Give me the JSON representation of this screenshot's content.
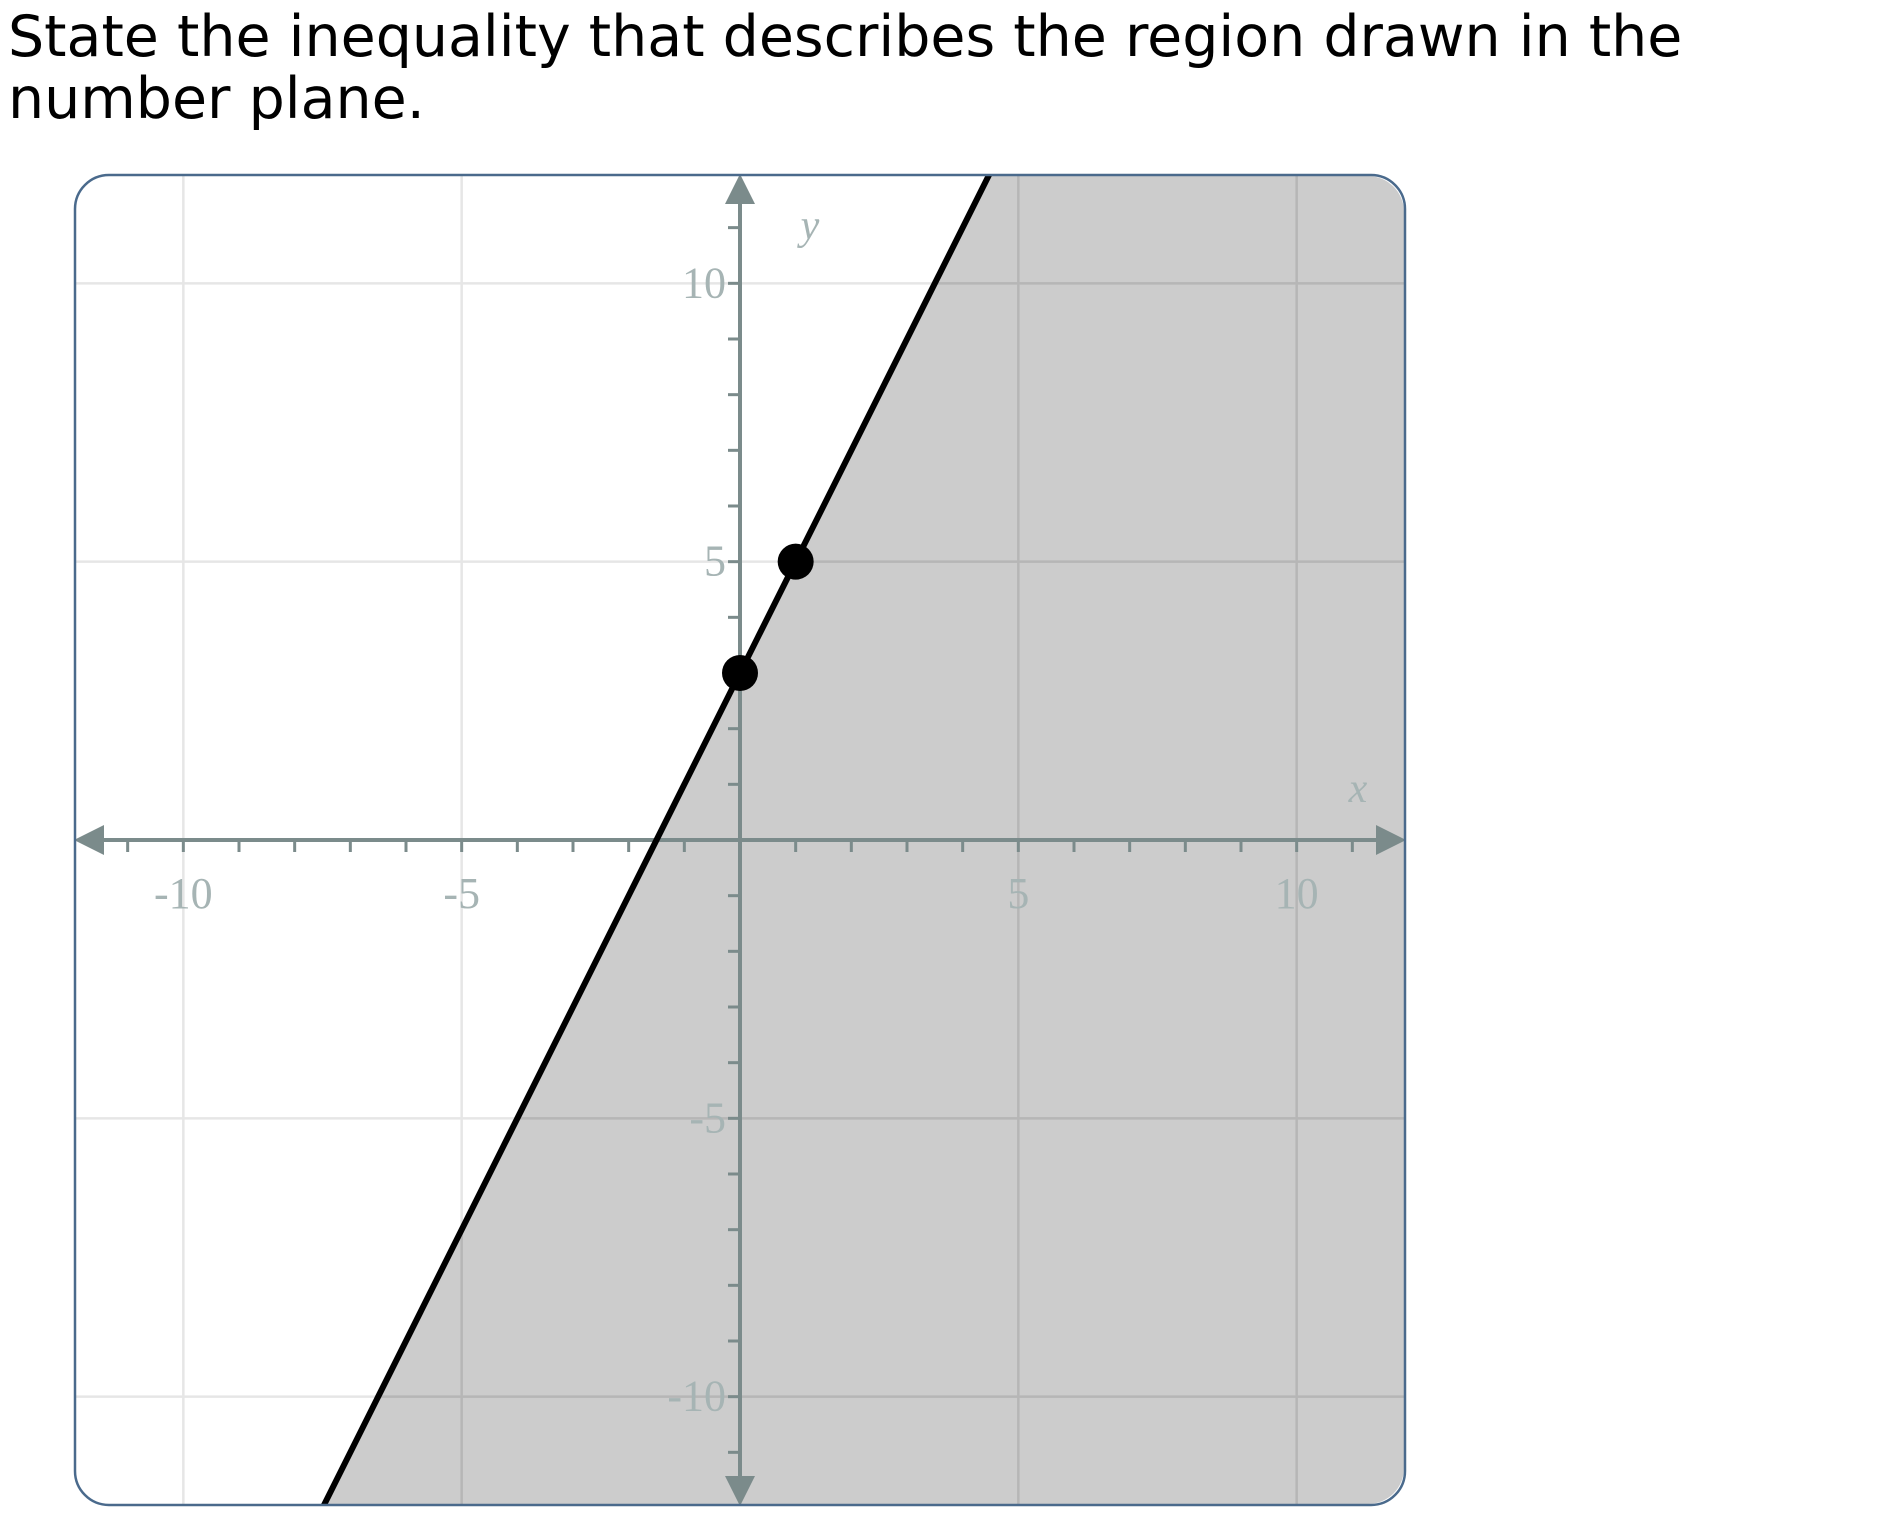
{
  "question": {
    "prompt": "State the inequality that describes the region drawn in the number plane."
  },
  "chart_data": {
    "type": "line",
    "title": "",
    "xlabel": "x",
    "ylabel": "y",
    "xlim": [
      -12,
      12
    ],
    "ylim": [
      -12,
      12
    ],
    "grid": true,
    "grid_step": 5,
    "minor_tick_step": 1,
    "x_tick_labels": [
      {
        "value": -10,
        "label": "-10"
      },
      {
        "value": -5,
        "label": "-5"
      },
      {
        "value": 5,
        "label": "5"
      },
      {
        "value": 10,
        "label": "10"
      }
    ],
    "y_tick_labels": [
      {
        "value": 10,
        "label": "10"
      },
      {
        "value": 5,
        "label": "5"
      },
      {
        "value": -5,
        "label": "-5"
      },
      {
        "value": -10,
        "label": "-10"
      }
    ],
    "boundary_line": {
      "slope": 2,
      "intercept": 3,
      "style": "solid"
    },
    "shaded_region": "below-right of line",
    "points": [
      {
        "x": 0,
        "y": 3
      },
      {
        "x": 1,
        "y": 5
      }
    ],
    "colors": {
      "shade": "#cccccc",
      "line": "#000000",
      "axis": "#7b8b8b",
      "axis_label": "#a6b4b4",
      "grid_light": "#e6e6e6",
      "grid_on_shade": "#b6b6b6",
      "frame": "#4a6a8c"
    }
  }
}
